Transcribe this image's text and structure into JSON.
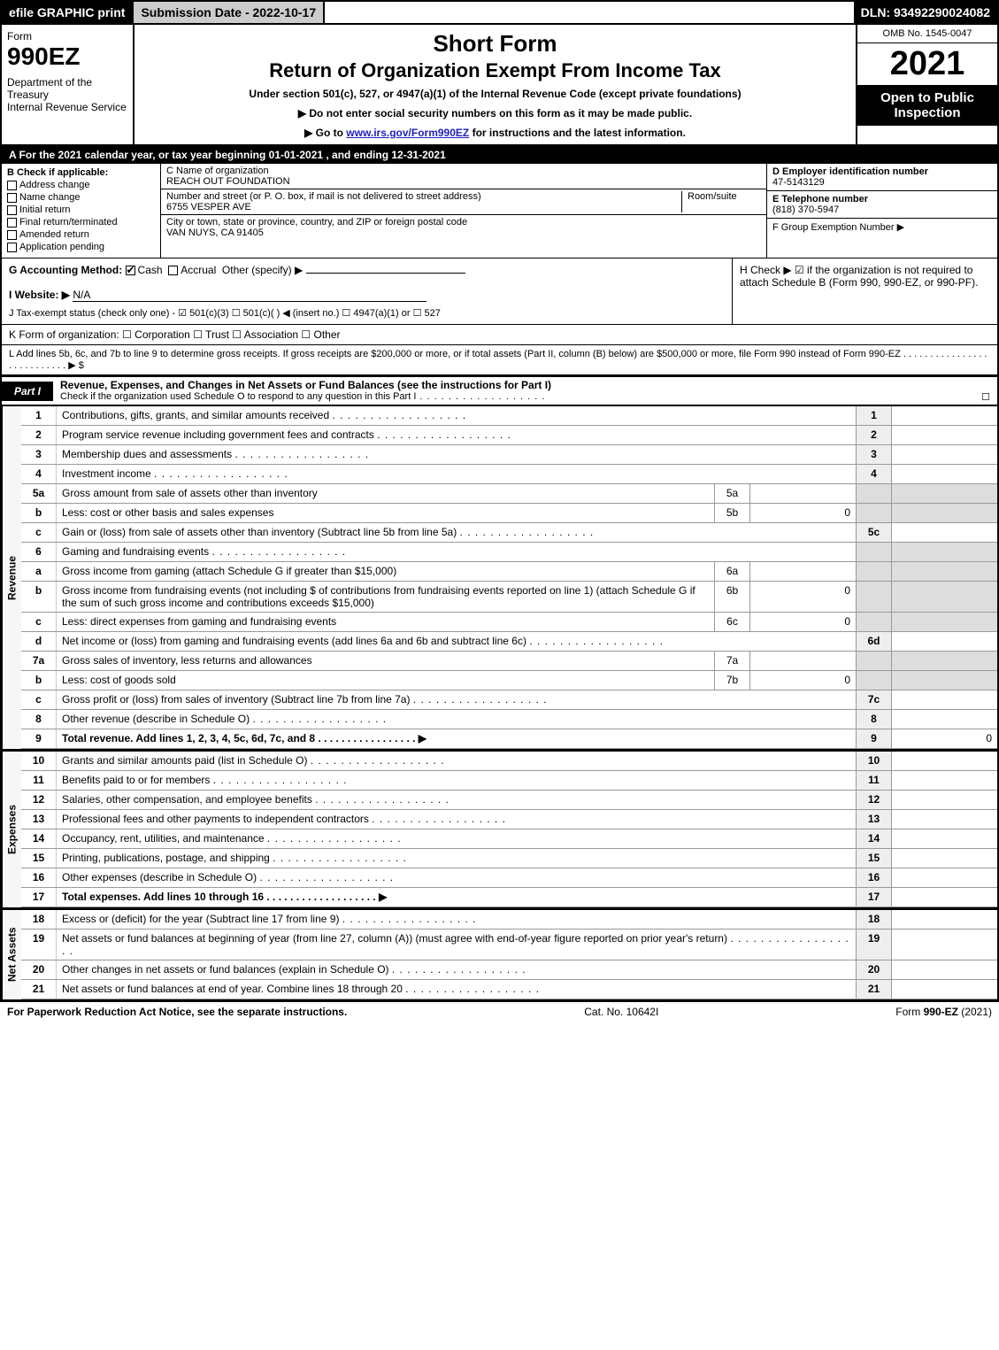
{
  "colors": {
    "black": "#000000",
    "white": "#ffffff",
    "gray_bg": "#cccccc",
    "shade": "#dddddd",
    "line": "#999999"
  },
  "topbar": {
    "efile": "efile GRAPHIC print",
    "submission": "Submission Date - 2022-10-17",
    "dln": "DLN: 93492290024082"
  },
  "header": {
    "form_word": "Form",
    "form_number": "990EZ",
    "dept": "Department of the Treasury\nInternal Revenue Service",
    "title1": "Short Form",
    "title2": "Return of Organization Exempt From Income Tax",
    "subtitle": "Under section 501(c), 527, or 4947(a)(1) of the Internal Revenue Code (except private foundations)",
    "note1": "▶ Do not enter social security numbers on this form as it may be made public.",
    "note2_pre": "▶ Go to ",
    "note2_link": "www.irs.gov/Form990EZ",
    "note2_post": " for instructions and the latest information.",
    "omb": "OMB No. 1545-0047",
    "year": "2021",
    "open": "Open to Public Inspection"
  },
  "row_a": "A  For the 2021 calendar year, or tax year beginning 01-01-2021 , and ending 12-31-2021",
  "col_b": {
    "heading": "B  Check if applicable:",
    "items": [
      "Address change",
      "Name change",
      "Initial return",
      "Final return/terminated",
      "Amended return",
      "Application pending"
    ]
  },
  "col_c": {
    "name_label": "C Name of organization",
    "name": "REACH OUT FOUNDATION",
    "street_label": "Number and street (or P. O. box, if mail is not delivered to street address)",
    "room_label": "Room/suite",
    "street": "6755 VESPER AVE",
    "city_label": "City or town, state or province, country, and ZIP or foreign postal code",
    "city": "VAN NUYS, CA  91405"
  },
  "col_de": {
    "ein_label": "D Employer identification number",
    "ein": "47-5143129",
    "tel_label": "E Telephone number",
    "tel": "(818) 370-5947",
    "group_label": "F Group Exemption Number  ▶"
  },
  "row_g": {
    "label": "G Accounting Method:",
    "cash": "Cash",
    "accrual": "Accrual",
    "other": "Other (specify) ▶",
    "website_label": "I Website: ▶",
    "website": "N/A",
    "j": "J Tax-exempt status (check only one) -  ☑ 501(c)(3)  ☐ 501(c)(  ) ◀ (insert no.)  ☐ 4947(a)(1) or  ☐ 527"
  },
  "row_h": "H  Check ▶ ☑ if the organization is not required to attach Schedule B (Form 990, 990-EZ, or 990-PF).",
  "row_k": "K Form of organization:   ☐ Corporation   ☐ Trust   ☐ Association   ☐ Other",
  "row_l": "L Add lines 5b, 6c, and 7b to line 9 to determine gross receipts. If gross receipts are $200,000 or more, or if total assets (Part II, column (B) below) are $500,000 or more, file Form 990 instead of Form 990-EZ  .  .  .  .  .  .  .  .  .  .  .  .  .  .  .  .  .  .  .  .  .  .  .  .  .  .  .  ▶ $",
  "part1": {
    "tab": "Part I",
    "title": "Revenue, Expenses, and Changes in Net Assets or Fund Balances (see the instructions for Part I)",
    "sub": "Check if the organization used Schedule O to respond to any question in this Part I",
    "check": "☐",
    "revenue_label": "Revenue",
    "expenses_label": "Expenses",
    "netassets_label": "Net Assets",
    "lines": [
      {
        "n": "1",
        "d": "Contributions, gifts, grants, and similar amounts received",
        "rn": "1",
        "rv": ""
      },
      {
        "n": "2",
        "d": "Program service revenue including government fees and contracts",
        "rn": "2",
        "rv": ""
      },
      {
        "n": "3",
        "d": "Membership dues and assessments",
        "rn": "3",
        "rv": ""
      },
      {
        "n": "4",
        "d": "Investment income",
        "rn": "4",
        "rv": ""
      },
      {
        "n": "5a",
        "d": "Gross amount from sale of assets other than inventory",
        "sub": "5a",
        "sv": "",
        "rn": "",
        "rv": "",
        "shade": true
      },
      {
        "n": "b",
        "d": "Less: cost or other basis and sales expenses",
        "sub": "5b",
        "sv": "0",
        "rn": "",
        "rv": "",
        "shade": true
      },
      {
        "n": "c",
        "d": "Gain or (loss) from sale of assets other than inventory (Subtract line 5b from line 5a)",
        "rn": "5c",
        "rv": ""
      },
      {
        "n": "6",
        "d": "Gaming and fundraising events",
        "rn": "",
        "rv": "",
        "shade": true
      },
      {
        "n": "a",
        "d": "Gross income from gaming (attach Schedule G if greater than $15,000)",
        "sub": "6a",
        "sv": "",
        "rn": "",
        "rv": "",
        "shade": true
      },
      {
        "n": "b",
        "d": "Gross income from fundraising events (not including $                    of contributions from fundraising events reported on line 1) (attach Schedule G if the sum of such gross income and contributions exceeds $15,000)",
        "sub": "6b",
        "sv": "0",
        "rn": "",
        "rv": "",
        "shade": true
      },
      {
        "n": "c",
        "d": "Less: direct expenses from gaming and fundraising events",
        "sub": "6c",
        "sv": "0",
        "rn": "",
        "rv": "",
        "shade": true
      },
      {
        "n": "d",
        "d": "Net income or (loss) from gaming and fundraising events (add lines 6a and 6b and subtract line 6c)",
        "rn": "6d",
        "rv": ""
      },
      {
        "n": "7a",
        "d": "Gross sales of inventory, less returns and allowances",
        "sub": "7a",
        "sv": "",
        "rn": "",
        "rv": "",
        "shade": true
      },
      {
        "n": "b",
        "d": "Less: cost of goods sold",
        "sub": "7b",
        "sv": "0",
        "rn": "",
        "rv": "",
        "shade": true
      },
      {
        "n": "c",
        "d": "Gross profit or (loss) from sales of inventory (Subtract line 7b from line 7a)",
        "rn": "7c",
        "rv": ""
      },
      {
        "n": "8",
        "d": "Other revenue (describe in Schedule O)",
        "rn": "8",
        "rv": ""
      },
      {
        "n": "9",
        "d": "Total revenue. Add lines 1, 2, 3, 4, 5c, 6d, 7c, and 8   .  .  .  .  .  .  .  .  .  .  .  .  .  .  .  .  .  ▶",
        "rn": "9",
        "rv": "0",
        "bold": true
      }
    ],
    "exp_lines": [
      {
        "n": "10",
        "d": "Grants and similar amounts paid (list in Schedule O)",
        "rn": "10",
        "rv": ""
      },
      {
        "n": "11",
        "d": "Benefits paid to or for members",
        "rn": "11",
        "rv": ""
      },
      {
        "n": "12",
        "d": "Salaries, other compensation, and employee benefits",
        "rn": "12",
        "rv": ""
      },
      {
        "n": "13",
        "d": "Professional fees and other payments to independent contractors",
        "rn": "13",
        "rv": ""
      },
      {
        "n": "14",
        "d": "Occupancy, rent, utilities, and maintenance",
        "rn": "14",
        "rv": ""
      },
      {
        "n": "15",
        "d": "Printing, publications, postage, and shipping",
        "rn": "15",
        "rv": ""
      },
      {
        "n": "16",
        "d": "Other expenses (describe in Schedule O)",
        "rn": "16",
        "rv": ""
      },
      {
        "n": "17",
        "d": "Total expenses. Add lines 10 through 16   .  .  .  .  .  .  .  .  .  .  .  .  .  .  .  .  .  .  .  ▶",
        "rn": "17",
        "rv": "",
        "bold": true
      }
    ],
    "net_lines": [
      {
        "n": "18",
        "d": "Excess or (deficit) for the year (Subtract line 17 from line 9)",
        "rn": "18",
        "rv": ""
      },
      {
        "n": "19",
        "d": "Net assets or fund balances at beginning of year (from line 27, column (A)) (must agree with end-of-year figure reported on prior year's return)",
        "rn": "19",
        "rv": ""
      },
      {
        "n": "20",
        "d": "Other changes in net assets or fund balances (explain in Schedule O)",
        "rn": "20",
        "rv": ""
      },
      {
        "n": "21",
        "d": "Net assets or fund balances at end of year. Combine lines 18 through 20",
        "rn": "21",
        "rv": ""
      }
    ]
  },
  "footer": {
    "left": "For Paperwork Reduction Act Notice, see the separate instructions.",
    "mid": "Cat. No. 10642I",
    "right_pre": "Form ",
    "right_bold": "990-EZ",
    "right_post": " (2021)"
  }
}
